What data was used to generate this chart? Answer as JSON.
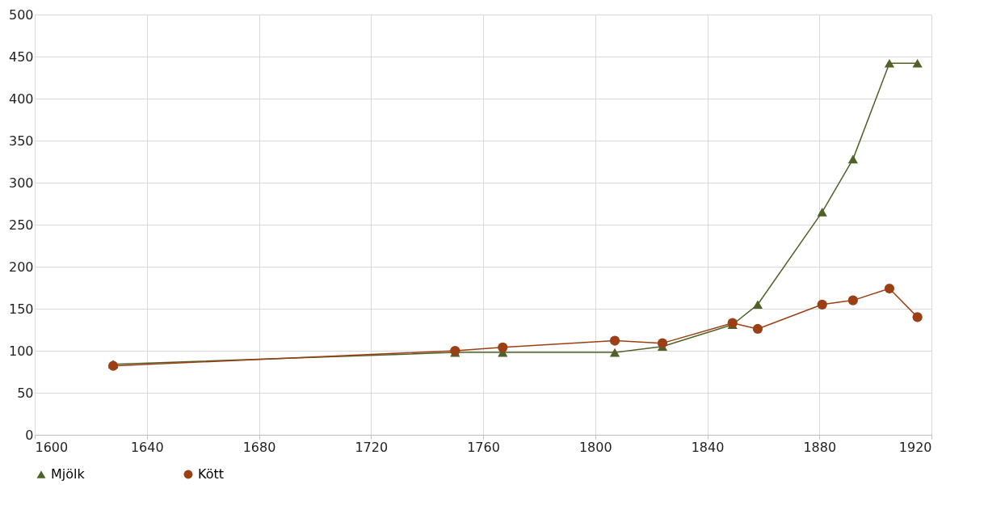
{
  "chart_data": {
    "type": "line",
    "x": [
      1628,
      1750,
      1767,
      1807,
      1824,
      1849,
      1858,
      1881,
      1892,
      1905,
      1915
    ],
    "xlim": [
      1600,
      1920
    ],
    "xticks": [
      1600,
      1640,
      1680,
      1720,
      1760,
      1800,
      1840,
      1880,
      1920
    ],
    "ylim": [
      0,
      500
    ],
    "yticks": [
      0,
      50,
      100,
      150,
      200,
      250,
      300,
      350,
      400,
      450,
      500
    ],
    "grid": true,
    "legend": "bottom",
    "series": [
      {
        "name": "Mjölk",
        "color": "#4f6228",
        "marker": "triangle",
        "values": [
          84,
          98,
          98,
          98,
          105,
          131,
          155,
          265,
          328,
          442,
          442
        ]
      },
      {
        "name": "Kött",
        "color": "#9c3f14",
        "marker": "circle",
        "values": [
          82,
          100,
          104,
          112,
          109,
          133,
          126,
          155,
          160,
          174,
          140
        ]
      }
    ]
  }
}
